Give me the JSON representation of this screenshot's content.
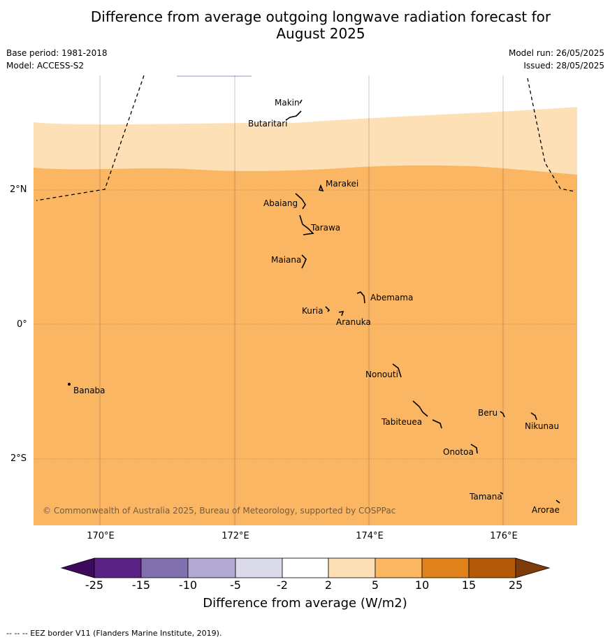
{
  "title_line1": "Difference from average outgoing longwave radiation forecast for",
  "title_line2": "August 2025",
  "base_period": "Base period: 1981-2018",
  "model": "Model: ACCESS-S2",
  "model_run": "Model run: 26/05/2025",
  "issued": "Issued: 28/05/2025",
  "latitudes": [
    "2°N",
    "0°",
    "2°S"
  ],
  "longitudes": [
    "170°E",
    "172°E",
    "174°E",
    "176°E"
  ],
  "islands": [
    {
      "name": "Makin",
      "lon": 173.0,
      "lat": 3.35
    },
    {
      "name": "Butaritari",
      "lon": 172.8,
      "lat": 3.1
    },
    {
      "name": "Marakei",
      "lon": 173.3,
      "lat": 2.0
    },
    {
      "name": "Abaiang",
      "lon": 173.0,
      "lat": 1.85
    },
    {
      "name": "Tarawa",
      "lon": 173.0,
      "lat": 1.4
    },
    {
      "name": "Maiana",
      "lon": 173.0,
      "lat": 0.9
    },
    {
      "name": "Abemama",
      "lon": 173.85,
      "lat": 0.4
    },
    {
      "name": "Kuria",
      "lon": 173.4,
      "lat": 0.22
    },
    {
      "name": "Aranuka",
      "lon": 173.6,
      "lat": 0.15
    },
    {
      "name": "Banaba",
      "lon": 169.55,
      "lat": -0.87
    },
    {
      "name": "Nonouti",
      "lon": 174.4,
      "lat": -0.68
    },
    {
      "name": "Tabiteuea",
      "lon": 174.8,
      "lat": -1.3
    },
    {
      "name": "Beru",
      "lon": 176.0,
      "lat": -1.33
    },
    {
      "name": "Nikunau",
      "lon": 176.45,
      "lat": -1.35
    },
    {
      "name": "Onotoa",
      "lon": 175.55,
      "lat": -1.82
    },
    {
      "name": "Tamana",
      "lon": 175.97,
      "lat": -2.5
    },
    {
      "name": "Arorae",
      "lon": 176.82,
      "lat": -2.65
    }
  ],
  "legend": {
    "ticks": [
      "-25",
      "-15",
      "-10",
      "-5",
      "-2",
      "2",
      "5",
      "10",
      "15",
      "25"
    ],
    "colors": [
      "#3f0a5e",
      "#5a2383",
      "#8070ae",
      "#b1a9d3",
      "#dadaeb",
      "#ffffff",
      "#fee0b6",
      "#fbb663",
      "#e0821c",
      "#b35907",
      "#7f3b08"
    ],
    "title": "Difference from average (W/m2)"
  },
  "map_colors": {
    "category_2_to_5": "#fee0b6",
    "category_5_to_10": "#fbb663"
  },
  "copyright": "© Commonwealth of Australia 2025, Bureau of Meteorology, supported by COSPPac",
  "footnote": "--  --  -- EEZ border V11 (Flanders Marine Institute, 2019)."
}
